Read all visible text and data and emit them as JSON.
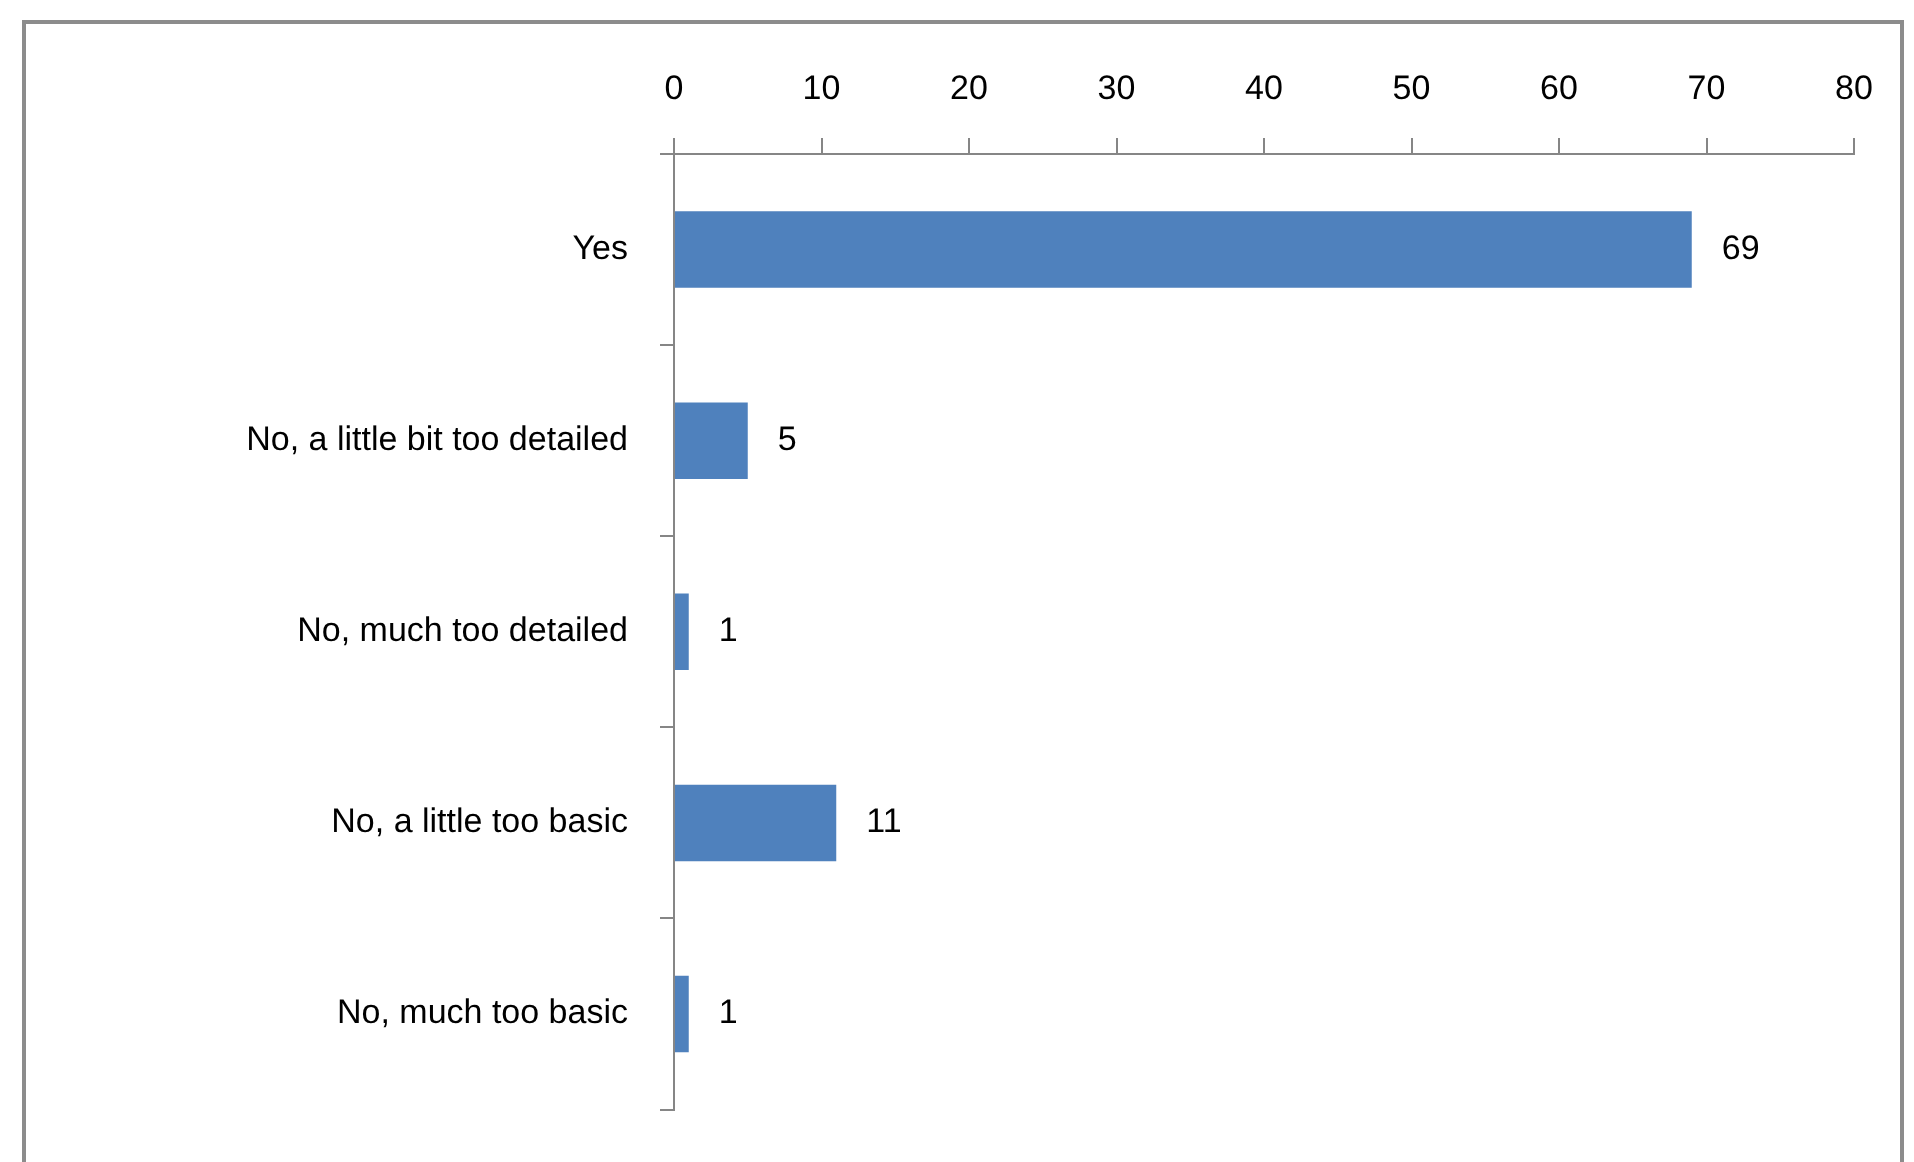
{
  "chart_data": {
    "type": "bar",
    "orientation": "horizontal",
    "categories": [
      "Yes",
      "No, a little bit too detailed",
      "No, much too detailed",
      "No, a little too basic",
      "No, much too basic"
    ],
    "values": [
      69,
      5,
      1,
      11,
      1
    ],
    "color": "#4f81bd",
    "xlim": [
      0,
      80
    ],
    "xticks": [
      0,
      10,
      20,
      30,
      40,
      50,
      60,
      70,
      80
    ],
    "data_labels": true
  }
}
